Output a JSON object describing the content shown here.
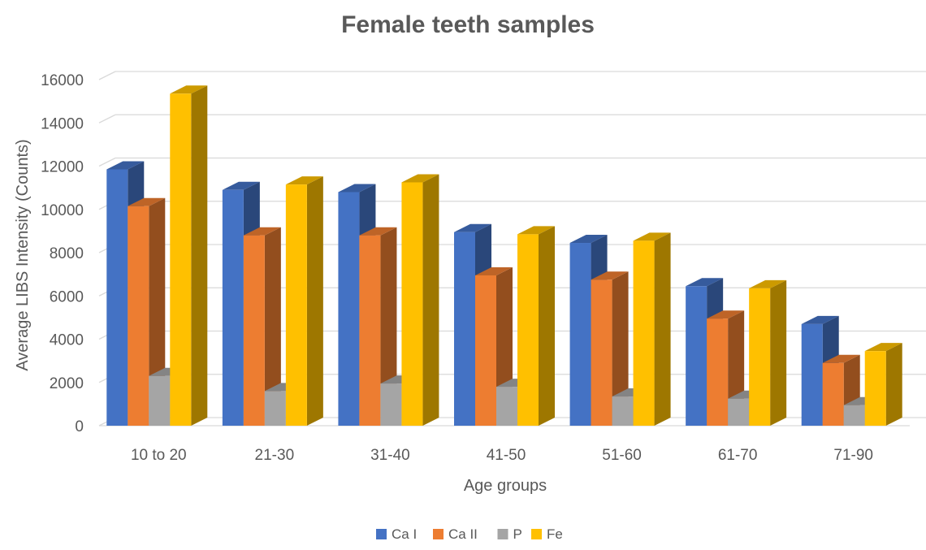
{
  "chart_data": {
    "type": "bar",
    "title": "Female teeth samples",
    "xlabel": "Age groups",
    "ylabel": "Average LIBS Intensity (Counts)",
    "categories": [
      "10 to 20",
      "21-30",
      "31-40",
      "41-50",
      "51-60",
      "61-70",
      "71-90"
    ],
    "ylim": [
      0,
      16000
    ],
    "yticks": [
      0,
      2000,
      4000,
      6000,
      8000,
      10000,
      12000,
      14000,
      16000
    ],
    "grid": true,
    "legend_position": "bottom",
    "series": [
      {
        "name": "Ca I",
        "color": "#4472C4",
        "values": [
          11850,
          10900,
          10800,
          8950,
          8450,
          6450,
          4700
        ]
      },
      {
        "name": "Ca II",
        "color": "#ED7D31",
        "values": [
          10150,
          8800,
          8800,
          6950,
          6750,
          4950,
          2900
        ]
      },
      {
        "name": "P",
        "color": "#A5A5A5",
        "values": [
          2300,
          1600,
          1950,
          1800,
          1350,
          1250,
          950
        ]
      },
      {
        "name": "Fe",
        "color": "#FFC000",
        "values": [
          15350,
          11150,
          11250,
          8850,
          8550,
          6350,
          3450
        ]
      }
    ]
  }
}
